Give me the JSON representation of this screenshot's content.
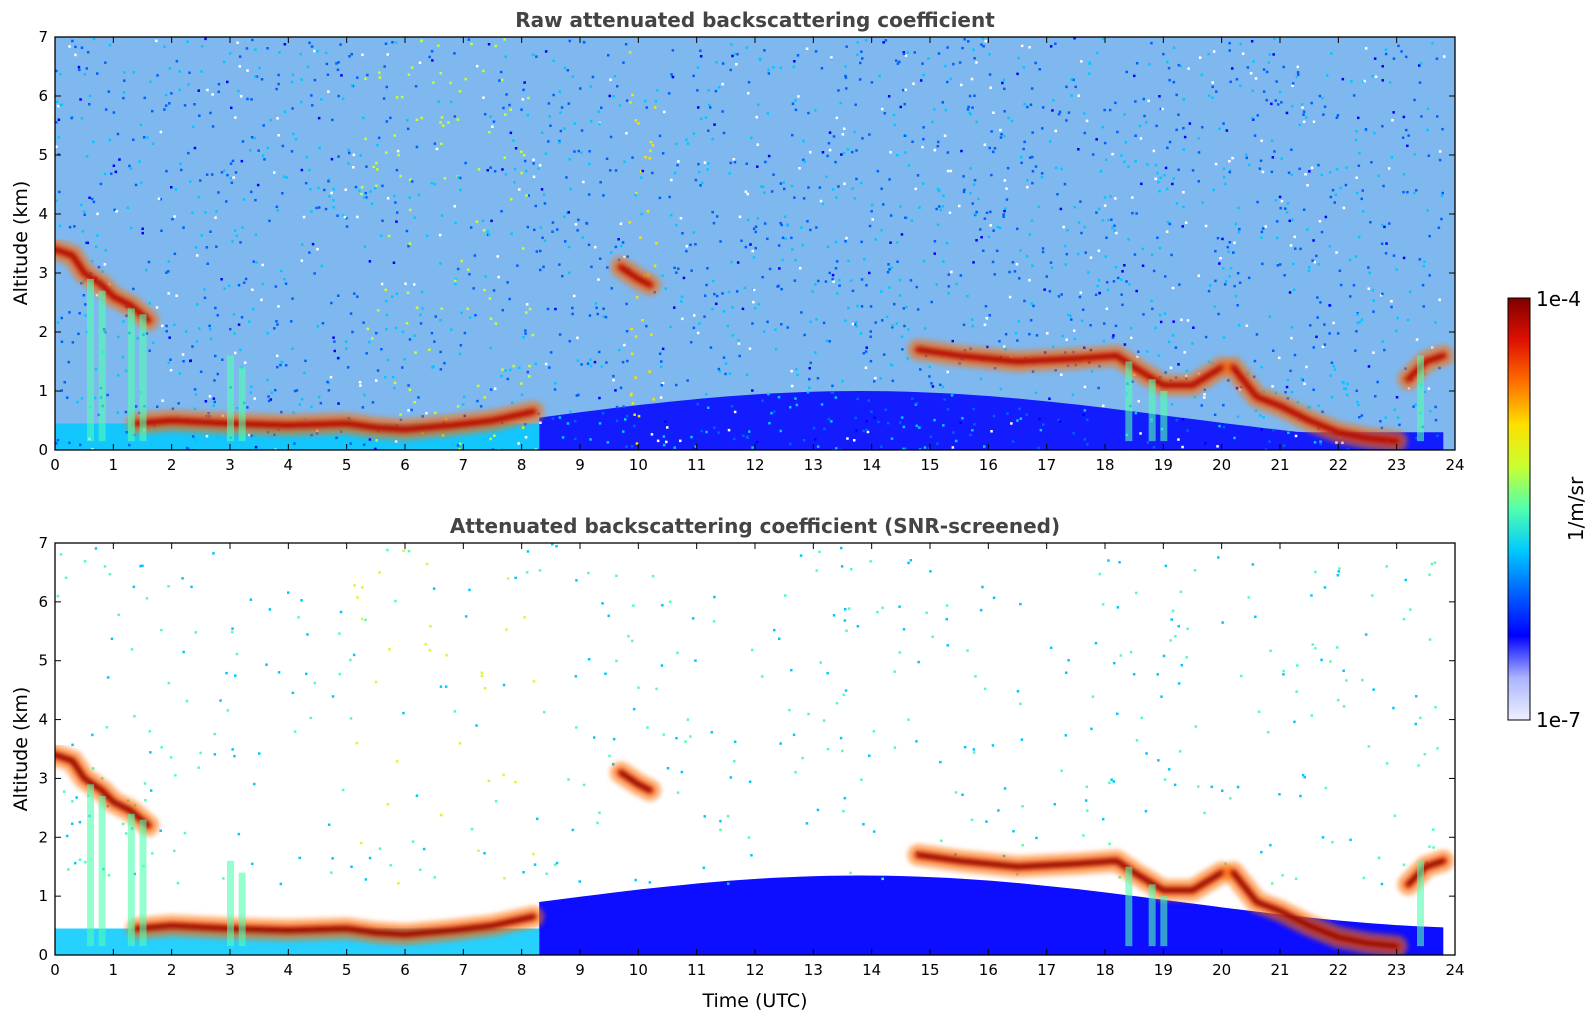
{
  "chart_data": [
    {
      "type": "heatmap",
      "title": "Raw attenuated backscattering coefficient",
      "xlabel": "",
      "ylabel": "Altitude (km)",
      "xlim": [
        0,
        24
      ],
      "ylim": [
        0,
        7
      ],
      "xticks": [
        "0",
        "1",
        "2",
        "3",
        "4",
        "5",
        "6",
        "7",
        "8",
        "9",
        "10",
        "11",
        "12",
        "13",
        "14",
        "15",
        "16",
        "17",
        "18",
        "19",
        "20",
        "21",
        "22",
        "23",
        "24"
      ],
      "yticks": [
        "0",
        "1",
        "2",
        "3",
        "4",
        "5",
        "6",
        "7"
      ],
      "screened": false,
      "grid": false,
      "layers": [
        {
          "name": "",
          "points": [
            [
              0.0,
              3.4
            ],
            [
              0.3,
              3.3
            ],
            [
              0.5,
              3.0
            ],
            [
              0.8,
              2.8
            ],
            [
              1.0,
              2.6
            ],
            [
              1.3,
              2.45
            ],
            [
              1.6,
              2.2
            ]
          ]
        },
        {
          "name": "",
          "points": [
            [
              1.4,
              0.45
            ],
            [
              2.0,
              0.5
            ],
            [
              3.0,
              0.45
            ],
            [
              4.0,
              0.42
            ],
            [
              5.0,
              0.45
            ],
            [
              5.5,
              0.38
            ],
            [
              6.0,
              0.35
            ],
            [
              6.8,
              0.42
            ],
            [
              7.5,
              0.5
            ],
            [
              8.2,
              0.65
            ]
          ]
        },
        {
          "name": "",
          "points": [
            [
              9.7,
              3.1
            ],
            [
              10.0,
              2.9
            ],
            [
              10.2,
              2.8
            ]
          ]
        },
        {
          "name": "",
          "points": [
            [
              14.8,
              1.7
            ],
            [
              15.5,
              1.6
            ],
            [
              16.5,
              1.5
            ],
            [
              17.5,
              1.55
            ],
            [
              18.2,
              1.6
            ],
            [
              18.5,
              1.4
            ],
            [
              19.0,
              1.1
            ],
            [
              19.5,
              1.1
            ],
            [
              20.0,
              1.4
            ]
          ]
        },
        {
          "name": "",
          "points": [
            [
              20.2,
              1.4
            ],
            [
              20.6,
              0.9
            ],
            [
              21.0,
              0.75
            ],
            [
              21.5,
              0.5
            ],
            [
              22.0,
              0.3
            ],
            [
              22.5,
              0.2
            ],
            [
              23.0,
              0.15
            ]
          ]
        },
        {
          "name": "",
          "points": [
            [
              23.2,
              1.2
            ],
            [
              23.5,
              1.5
            ],
            [
              23.8,
              1.6
            ]
          ]
        }
      ]
    },
    {
      "type": "heatmap",
      "title": "Attenuated backscattering coefficient (SNR-screened)",
      "xlabel": "Time (UTC)",
      "ylabel": "Altitude (km)",
      "xlim": [
        0,
        24
      ],
      "ylim": [
        0,
        7
      ],
      "xticks": [
        "0",
        "1",
        "2",
        "3",
        "4",
        "5",
        "6",
        "7",
        "8",
        "9",
        "10",
        "11",
        "12",
        "13",
        "14",
        "15",
        "16",
        "17",
        "18",
        "19",
        "20",
        "21",
        "22",
        "23",
        "24"
      ],
      "yticks": [
        "0",
        "1",
        "2",
        "3",
        "4",
        "5",
        "6",
        "7"
      ],
      "screened": true,
      "grid": false
    }
  ],
  "colorbar": {
    "label": "1/m/sr",
    "max_label": "1e-4",
    "min_label": "1e-7",
    "range": [
      1e-07,
      0.0001
    ],
    "scale": "log",
    "colormap": "jet",
    "colors": [
      "#eef0ff",
      "#aab4ff",
      "#0000ff",
      "#0060ff",
      "#00c8ff",
      "#50ffb0",
      "#c8ff30",
      "#ffe000",
      "#ff7000",
      "#e01000",
      "#800000"
    ]
  }
}
